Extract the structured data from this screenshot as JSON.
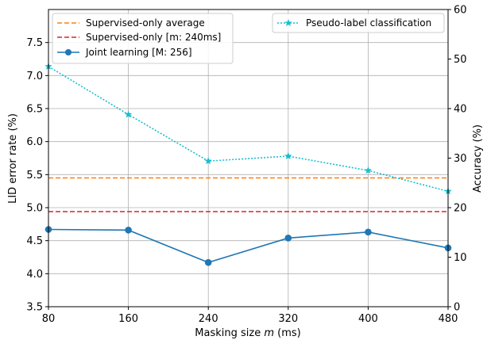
{
  "chart_data": {
    "type": "line",
    "xlabel_prefix": "Masking size ",
    "xlabel_var": "m",
    "xlabel_suffix": " (ms)",
    "ylabel": "LID error rate (%)",
    "ylabel_right": "Accuracy (%)",
    "x": [
      80,
      160,
      240,
      320,
      400,
      480
    ],
    "xlim": [
      80,
      480
    ],
    "ylim": [
      3.5,
      8.0
    ],
    "ylim_right": [
      0,
      60
    ],
    "yticks": [
      "3.5",
      "4.0",
      "4.5",
      "5.0",
      "5.5",
      "6.0",
      "6.5",
      "7.0",
      "7.5"
    ],
    "yticks_right": [
      "0",
      "10",
      "20",
      "30",
      "40",
      "50",
      "60"
    ],
    "grid": true,
    "series": [
      {
        "name": "Supervised-only average",
        "axis": "left",
        "style": "dashed",
        "color": "#ff7f0e",
        "values": [
          5.45,
          5.45,
          5.45,
          5.45,
          5.45,
          5.45
        ]
      },
      {
        "name": "Supervised-only [m: 240ms]",
        "axis": "left",
        "style": "dashed",
        "color": "#d62728",
        "values": [
          4.94,
          4.94,
          4.94,
          4.94,
          4.94,
          4.94
        ]
      },
      {
        "name": "Joint learning [M: 256]",
        "axis": "left",
        "style": "solid-circle",
        "color": "#1f77b4",
        "values": [
          4.67,
          4.66,
          4.17,
          4.54,
          4.63,
          4.39
        ]
      },
      {
        "name": "Pseudo-label classification",
        "axis": "right",
        "style": "dotted-star",
        "color": "#17becf",
        "values": [
          48.5,
          38.8,
          29.4,
          30.4,
          27.5,
          23.3
        ]
      }
    ],
    "legend_left": "top-left",
    "legend_right": "top-right"
  }
}
